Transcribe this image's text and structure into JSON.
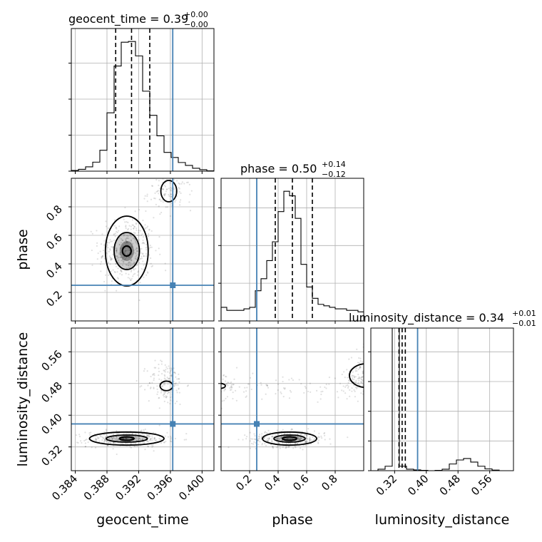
{
  "chart_data": {
    "type": "corner",
    "truth_color": "#4682b4",
    "grid": true,
    "parameters": [
      {
        "name": "geocent_time",
        "axis_label": "geocent_time",
        "title": "geocent_time = 0.39",
        "title_sup": "+0.00",
        "title_sub": "−0.00",
        "range": [
          0.3835,
          0.4015
        ],
        "ticks": [
          "0.384",
          "0.388",
          "0.392",
          "0.396",
          "0.400"
        ],
        "tick_values": [
          0.384,
          0.388,
          0.392,
          0.396,
          0.4
        ],
        "truth": 0.3963,
        "quantiles": [
          0.3891,
          0.3911,
          0.3934
        ],
        "hist_edges_start": 0.3835,
        "hist_bin_width": 0.0009,
        "hist_counts": [
          0.02,
          0.05,
          0.12,
          0.25,
          0.58,
          1.62,
          2.92,
          3.58,
          3.6,
          3.2,
          2.22,
          1.55,
          0.98,
          0.52,
          0.38,
          0.24,
          0.16,
          0.08,
          0.04,
          0.01
        ]
      },
      {
        "name": "phase",
        "axis_label": "phase",
        "title": "phase = 0.50",
        "title_sup": "+0.14",
        "title_sub": "−0.12",
        "range": [
          0.0,
          1.0
        ],
        "ticks": [
          "0.2",
          "0.4",
          "0.6",
          "0.8"
        ],
        "tick_values": [
          0.2,
          0.4,
          0.6,
          0.8
        ],
        "truth": 0.25,
        "quantiles": [
          0.38,
          0.5,
          0.64
        ],
        "hist_edges_start": 0.0,
        "hist_bin_width": 0.04,
        "hist_counts": [
          0.18,
          0.14,
          0.14,
          0.14,
          0.16,
          0.18,
          0.4,
          0.56,
          0.8,
          1.05,
          1.45,
          1.72,
          1.66,
          1.36,
          0.75,
          0.45,
          0.3,
          0.22,
          0.2,
          0.18,
          0.16,
          0.16,
          0.14,
          0.14,
          0.12
        ]
      },
      {
        "name": "luminosity_distance",
        "axis_label": "luminosity_distance",
        "title": "luminosity_distance = 0.34",
        "title_sup": "+0.01",
        "title_sub": "−0.01",
        "range": [
          0.26,
          0.62
        ],
        "ticks": [
          "0.32",
          "0.40",
          "0.48",
          "0.56"
        ],
        "tick_values": [
          0.32,
          0.4,
          0.48,
          0.56
        ],
        "truth": 0.378,
        "quantiles": [
          0.331,
          0.339,
          0.347
        ],
        "hist_edges_start": 0.26,
        "hist_bin_width": 0.018,
        "hist_counts": [
          0.0,
          0.1,
          0.3,
          9.6,
          0.3,
          0.1,
          0.05,
          0.02,
          0.0,
          0.02,
          0.1,
          0.45,
          0.72,
          0.82,
          0.58,
          0.3,
          0.12,
          0.04,
          0.0,
          0.0
        ]
      }
    ],
    "pairs": [
      {
        "row": 1,
        "col": 0,
        "clusters": [
          {
            "center": [
              0.3905,
              0.49
            ],
            "spread": [
              0.00175,
              0.12
            ],
            "n": 420
          },
          {
            "center": [
              0.396,
              0.9
            ],
            "spread": [
              0.0014,
              0.06
            ],
            "n": 110
          }
        ],
        "contours": [
          {
            "center": [
              0.3905,
              0.49
            ],
            "radii": [
              0.00055,
              0.035
            ],
            "width": 2.2
          },
          {
            "center": [
              0.3905,
              0.49
            ],
            "radii": [
              0.0016,
              0.13
            ],
            "width": 1.8
          },
          {
            "center": [
              0.3905,
              0.49
            ],
            "radii": [
              0.0027,
              0.245
            ],
            "width": 1.8
          },
          {
            "center": [
              0.3958,
              0.91
            ],
            "radii": [
              0.001,
              0.075
            ],
            "width": 1.8
          }
        ],
        "density_peaks": [
          {
            "center": [
              0.3905,
              0.49
            ],
            "radii": [
              0.0016,
              0.13
            ],
            "level": 0.35
          },
          {
            "center": [
              0.3905,
              0.49
            ],
            "radii": [
              0.0009,
              0.07
            ],
            "level": 0.6
          }
        ]
      },
      {
        "row": 2,
        "col": 0,
        "clusters": [
          {
            "center": [
              0.3905,
              0.34
            ],
            "spread": [
              0.0025,
              0.01
            ],
            "n": 380
          },
          {
            "center": [
              0.3955,
              0.48
            ],
            "spread": [
              0.0012,
              0.028
            ],
            "n": 160
          }
        ],
        "contours": [
          {
            "center": [
              0.3905,
              0.341
            ],
            "radii": [
              0.0009,
              0.0045
            ],
            "width": 2.2
          },
          {
            "center": [
              0.3905,
              0.341
            ],
            "radii": [
              0.0026,
              0.009
            ],
            "width": 1.8
          },
          {
            "center": [
              0.3905,
              0.341
            ],
            "radii": [
              0.0047,
              0.0165
            ],
            "width": 1.8
          },
          {
            "center": [
              0.3955,
              0.474
            ],
            "radii": [
              0.0008,
              0.012
            ],
            "width": 1.8
          }
        ],
        "density_peaks": [
          {
            "center": [
              0.3905,
              0.341
            ],
            "radii": [
              0.0026,
              0.009
            ],
            "level": 0.3
          },
          {
            "center": [
              0.3905,
              0.341
            ],
            "radii": [
              0.001,
              0.005
            ],
            "level": 0.75
          }
        ]
      },
      {
        "row": 2,
        "col": 1,
        "clusters": [
          {
            "center": [
              0.47,
              0.34
            ],
            "spread": [
              0.13,
              0.01
            ],
            "n": 360
          },
          {
            "center": [
              0.97,
              0.5
            ],
            "spread": [
              0.05,
              0.03
            ],
            "n": 130
          },
          {
            "center": [
              0.05,
              0.47
            ],
            "spread": [
              0.04,
              0.02
            ],
            "n": 40
          },
          {
            "center": [
              0.5,
              0.47
            ],
            "spread": [
              0.3,
              0.015
            ],
            "n": 90
          }
        ],
        "contours": [
          {
            "center": [
              0.48,
              0.341
            ],
            "radii": [
              0.05,
              0.0045
            ],
            "width": 2.2
          },
          {
            "center": [
              0.48,
              0.341
            ],
            "radii": [
              0.11,
              0.009
            ],
            "width": 1.8
          },
          {
            "center": [
              0.48,
              0.341
            ],
            "radii": [
              0.19,
              0.0165
            ],
            "width": 1.8
          },
          {
            "center": [
              1.02,
              0.5
            ],
            "radii": [
              0.12,
              0.03
            ],
            "width": 1.8
          },
          {
            "center": [
              -0.02,
              0.474
            ],
            "radii": [
              0.05,
              0.007
            ],
            "width": 1.8
          }
        ],
        "density_peaks": [
          {
            "center": [
              0.48,
              0.341
            ],
            "radii": [
              0.11,
              0.009
            ],
            "level": 0.3
          },
          {
            "center": [
              0.48,
              0.341
            ],
            "radii": [
              0.04,
              0.005
            ],
            "level": 0.75
          }
        ]
      }
    ]
  }
}
